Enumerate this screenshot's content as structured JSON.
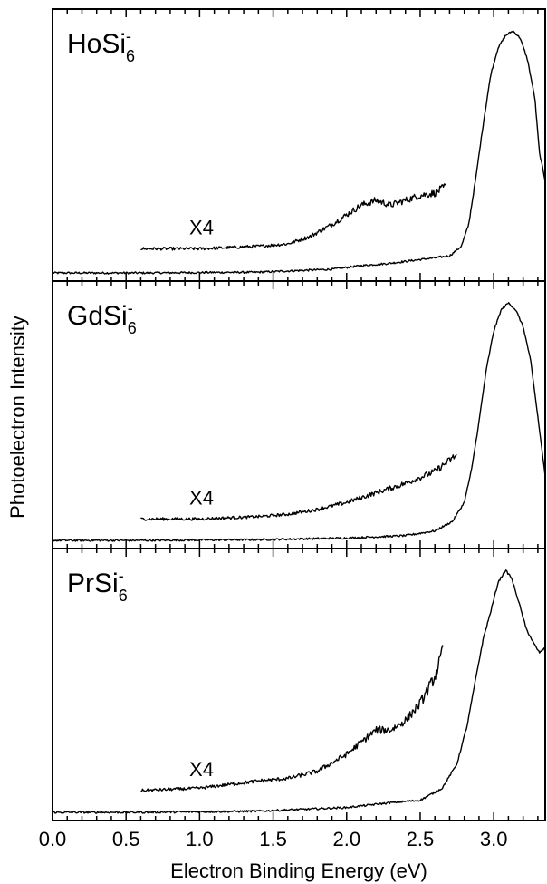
{
  "chart_data": {
    "type": "line",
    "xlabel": "Electron Binding Energy (eV)",
    "ylabel": "Photoelectron Intensity",
    "xlim": [
      0.0,
      3.35
    ],
    "x_ticks": [
      "0.0",
      "0.5",
      "1.0",
      "1.5",
      "2.0",
      "2.5",
      "3.0"
    ],
    "x_tick_values": [
      0.0,
      0.5,
      1.0,
      1.5,
      2.0,
      2.5,
      3.0
    ],
    "grid": false,
    "panels": [
      {
        "label": {
          "base": "HoSi",
          "sub": "6",
          "sup": "-"
        },
        "magnification_label": "X4",
        "series": [
          {
            "role": "main",
            "x": [
              0.0,
              0.6,
              1.4,
              1.9,
              2.1,
              2.3,
              2.5,
              2.7,
              2.78,
              2.83,
              2.88,
              2.93,
              2.98,
              3.03,
              3.08,
              3.13,
              3.18,
              3.23,
              3.28,
              3.31,
              3.35
            ],
            "y": [
              0.0,
              0.0,
              0.003,
              0.015,
              0.03,
              0.04,
              0.055,
              0.07,
              0.11,
              0.2,
              0.4,
              0.62,
              0.82,
              0.93,
              0.98,
              1.0,
              0.97,
              0.88,
              0.72,
              0.5,
              0.38
            ]
          },
          {
            "role": "x4",
            "x": [
              0.6,
              1.0,
              1.4,
              1.6,
              1.75,
              1.9,
              2.0,
              2.1,
              2.2,
              2.3,
              2.4,
              2.5,
              2.6,
              2.68
            ],
            "y": [
              0.1,
              0.1,
              0.11,
              0.12,
              0.15,
              0.2,
              0.24,
              0.28,
              0.3,
              0.28,
              0.3,
              0.32,
              0.33,
              0.36
            ]
          }
        ]
      },
      {
        "label": {
          "base": "GdSi",
          "sub": "6",
          "sup": "-"
        },
        "magnification_label": "X4",
        "series": [
          {
            "role": "main",
            "x": [
              0.0,
              0.6,
              1.4,
              2.0,
              2.4,
              2.6,
              2.72,
              2.8,
              2.85,
              2.9,
              2.95,
              3.0,
              3.05,
              3.1,
              3.15,
              3.2,
              3.25,
              3.3,
              3.35
            ],
            "y": [
              0.0,
              0.0,
              0.003,
              0.01,
              0.02,
              0.04,
              0.08,
              0.16,
              0.3,
              0.5,
              0.72,
              0.88,
              0.97,
              1.0,
              0.97,
              0.9,
              0.76,
              0.52,
              0.27
            ]
          },
          {
            "role": "x4",
            "x": [
              0.6,
              1.0,
              1.4,
              1.6,
              1.8,
              2.0,
              2.2,
              2.4,
              2.6,
              2.75
            ],
            "y": [
              0.09,
              0.09,
              0.1,
              0.11,
              0.13,
              0.16,
              0.2,
              0.24,
              0.29,
              0.36
            ]
          }
        ]
      },
      {
        "label": {
          "base": "PrSi",
          "sub": "6",
          "sup": "-"
        },
        "magnification_label": "X4",
        "series": [
          {
            "role": "main",
            "x": [
              0.0,
              0.6,
              1.4,
              2.0,
              2.3,
              2.5,
              2.65,
              2.75,
              2.82,
              2.88,
              2.93,
              2.98,
              3.03,
              3.08,
              3.12,
              3.17,
              3.22,
              3.27,
              3.31,
              3.35
            ],
            "y": [
              0.0,
              0.0,
              0.005,
              0.02,
              0.04,
              0.05,
              0.1,
              0.2,
              0.36,
              0.56,
              0.72,
              0.83,
              0.95,
              1.0,
              0.97,
              0.87,
              0.76,
              0.7,
              0.66,
              0.68
            ]
          },
          {
            "role": "x4",
            "x": [
              0.6,
              1.0,
              1.4,
              1.6,
              1.8,
              2.0,
              2.2,
              2.3,
              2.4,
              2.5,
              2.6,
              2.66
            ],
            "y": [
              0.09,
              0.1,
              0.13,
              0.14,
              0.17,
              0.24,
              0.34,
              0.34,
              0.38,
              0.45,
              0.56,
              0.68
            ]
          }
        ]
      }
    ]
  }
}
